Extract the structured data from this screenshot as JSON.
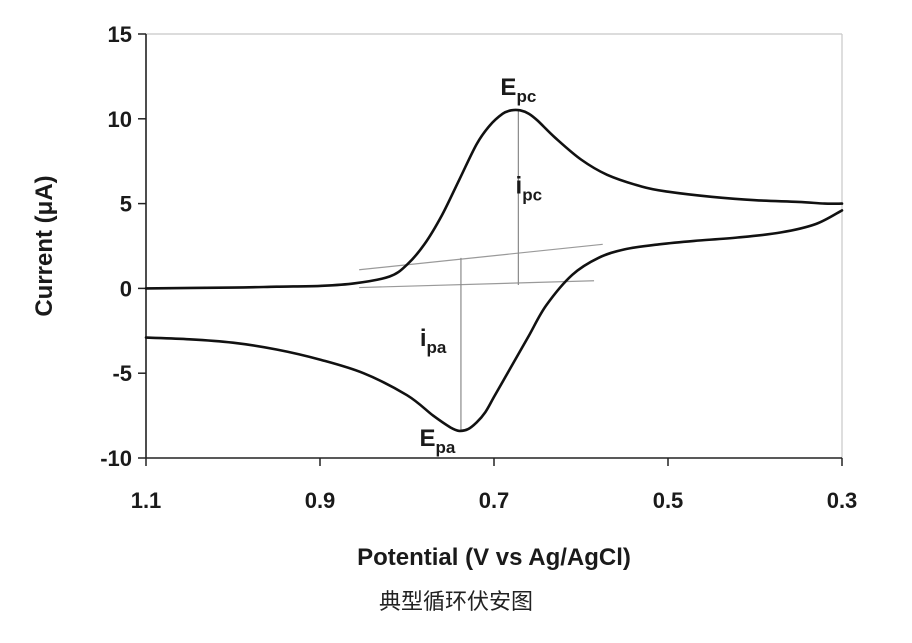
{
  "caption": "典型循环伏安图",
  "chart_data": {
    "type": "line",
    "title": "",
    "xlabel": "Potential (V vs Ag/AgCl)",
    "ylabel": "Current (μA)",
    "xlim": [
      1.1,
      0.3
    ],
    "ylim": [
      -10,
      15
    ],
    "x_reversed": true,
    "grid": false,
    "xticks": [
      1.1,
      0.9,
      0.7,
      0.5,
      0.3
    ],
    "xtick_labels": [
      "1.1",
      "0.9",
      "0.7",
      "0.5",
      "0.3"
    ],
    "yticks": [
      -10,
      -5,
      0,
      5,
      10,
      15
    ],
    "ytick_labels": [
      "-10",
      "-5",
      "0",
      "5",
      "10",
      "15"
    ],
    "series": [
      {
        "x": [
          1.1,
          1.0,
          0.95,
          0.9,
          0.86,
          0.82,
          0.8,
          0.78,
          0.76,
          0.74,
          0.72,
          0.705,
          0.69,
          0.68,
          0.67,
          0.66,
          0.65,
          0.63,
          0.6,
          0.57,
          0.53,
          0.5,
          0.45,
          0.4,
          0.35,
          0.32,
          0.3
        ],
        "y": [
          0.0,
          0.05,
          0.1,
          0.15,
          0.3,
          0.7,
          1.4,
          2.6,
          4.3,
          6.4,
          8.5,
          9.6,
          10.3,
          10.5,
          10.5,
          10.3,
          9.9,
          8.9,
          7.6,
          6.7,
          6.0,
          5.7,
          5.4,
          5.2,
          5.1,
          5.0,
          5.0
        ]
      },
      {
        "x": [
          0.3,
          0.33,
          0.37,
          0.42,
          0.47,
          0.51,
          0.55,
          0.58,
          0.61,
          0.64,
          0.66,
          0.68,
          0.7,
          0.71,
          0.72,
          0.73,
          0.74,
          0.75,
          0.77,
          0.8,
          0.85,
          0.9,
          0.95,
          1.0,
          1.05,
          1.1
        ],
        "y": [
          4.6,
          3.8,
          3.3,
          3.0,
          2.8,
          2.6,
          2.3,
          1.8,
          0.8,
          -1.0,
          -2.8,
          -4.6,
          -6.4,
          -7.3,
          -7.9,
          -8.3,
          -8.4,
          -8.2,
          -7.5,
          -6.3,
          -5.0,
          -4.2,
          -3.6,
          -3.2,
          -3.0,
          -2.9
        ]
      }
    ],
    "baselines": [
      {
        "x": [
          0.855,
          0.575
        ],
        "y": [
          1.1,
          2.6
        ]
      },
      {
        "x": [
          0.855,
          0.585
        ],
        "y": [
          0.05,
          0.45
        ]
      }
    ],
    "markers": [
      {
        "x": 0.672,
        "y1": 0.2,
        "y2": 10.5
      },
      {
        "x": 0.738,
        "y1": 1.8,
        "y2": -8.4
      }
    ],
    "annotations": [
      {
        "main": "E",
        "sub": "pc",
        "x": 0.672,
        "y": 11.4
      },
      {
        "main": "i",
        "sub": "pc",
        "x": 0.66,
        "y": 5.6
      },
      {
        "main": "i",
        "sub": "pa",
        "x": 0.77,
        "y": -3.4
      },
      {
        "main": "E",
        "sub": "pa",
        "x": 0.765,
        "y": -9.3
      }
    ]
  }
}
